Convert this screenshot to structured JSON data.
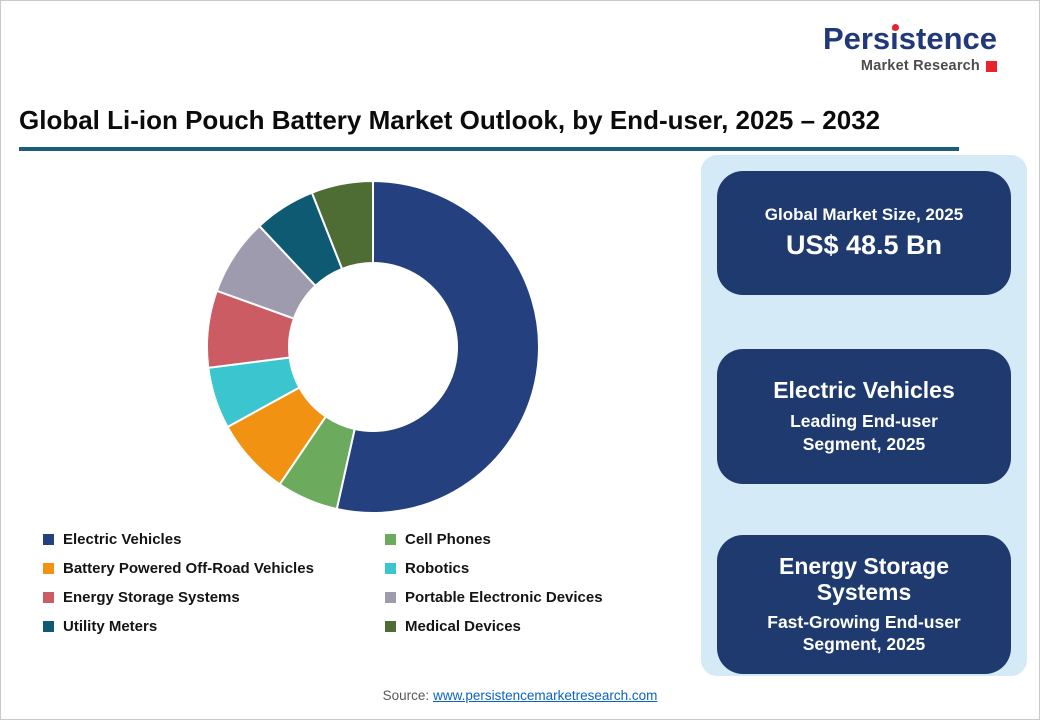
{
  "logo": {
    "brand": "Persistence",
    "subtitle": "Market Research"
  },
  "title": "Global Li-ion Pouch Battery Market Outlook, by End-user, 2025 – 2032",
  "chart_data": {
    "type": "pie",
    "subtype": "donut",
    "title": "Global Li-ion Pouch Battery Market Outlook, by End-user, 2025 – 2032",
    "start_angle_deg": 0,
    "direction": "clockwise",
    "inner_radius_ratio": 0.5,
    "legend_position": "bottom",
    "segments": [
      {
        "label": "Electric Vehicles",
        "value": 53.5,
        "color": "#24407F"
      },
      {
        "label": "Cell Phones",
        "value": 6,
        "color": "#6CAB5E"
      },
      {
        "label": "Battery Powered Off-Road Vehicles",
        "value": 7.5,
        "color": "#F29213"
      },
      {
        "label": "Robotics",
        "value": 6,
        "color": "#3BC6CF"
      },
      {
        "label": "Energy Storage Systems",
        "value": 7.5,
        "color": "#CC5C64"
      },
      {
        "label": "Portable Electronic Devices",
        "value": 7.5,
        "color": "#9E9BAE"
      },
      {
        "label": "Utility Meters",
        "value": 6,
        "color": "#0F5A73"
      },
      {
        "label": "Medical Devices",
        "value": 6,
        "color": "#4D6D34"
      }
    ]
  },
  "cards": [
    {
      "line1": "Global Market Size, 2025",
      "line2": "US$ 48.5 Bn"
    },
    {
      "line1": "Electric Vehicles",
      "line2": "Leading End-user Segment, 2025"
    },
    {
      "line1": "Energy Storage Systems",
      "line2": "Fast-Growing End-user Segment, 2025"
    }
  ],
  "footer": {
    "source_label": "Source:",
    "source_link": "www.persistencemarketresearch.com"
  },
  "colors": {
    "card_navy": "#1F3A6E",
    "panel_blue": "#D5EAF7",
    "title_rule": "#1C5E78",
    "logo_navy": "#21397A",
    "logo_red": "#E8232B",
    "link_blue": "#0B63C5"
  }
}
